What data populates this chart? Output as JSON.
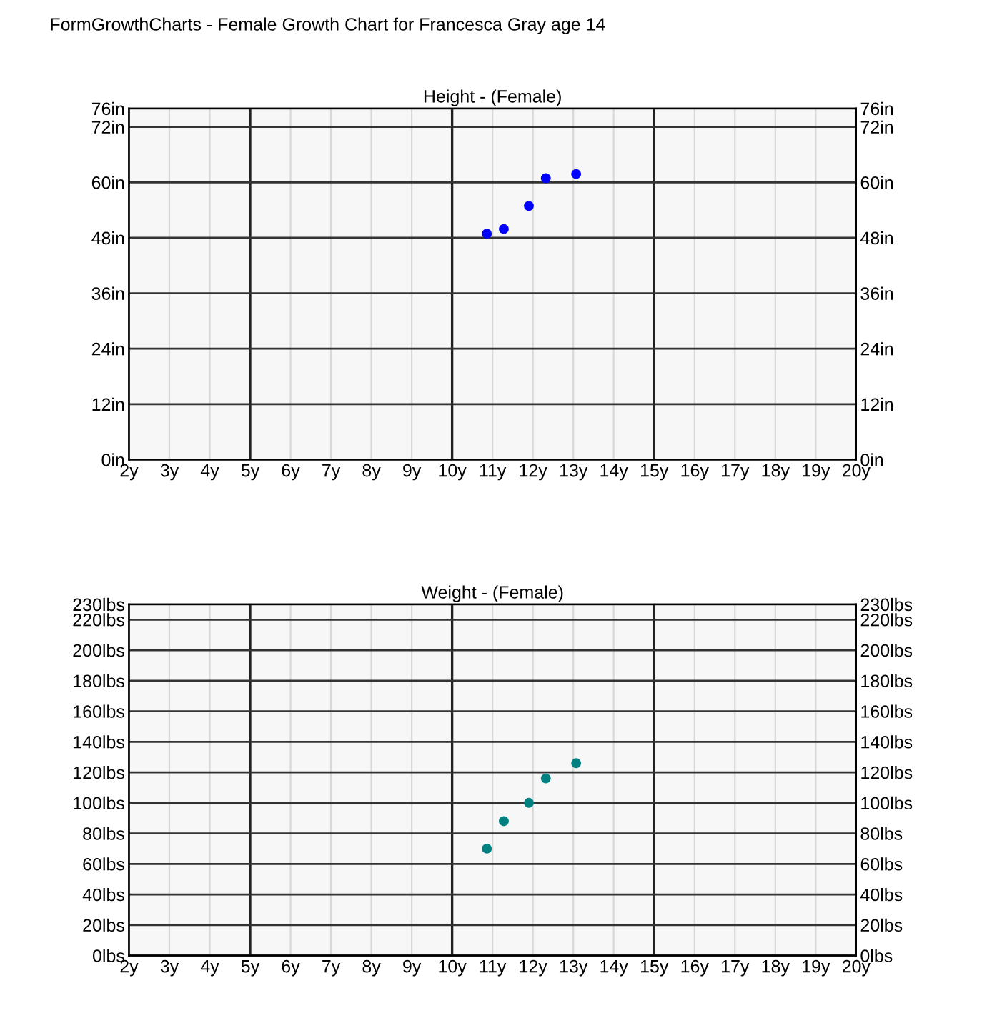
{
  "chart_data": [
    {
      "type": "scatter",
      "title": "Height - (Female)",
      "annotations": [
        "FormGrowthCharts - Female Growth Chart for Francesca Gray age 14"
      ],
      "x": [
        10.86,
        11.28,
        11.9,
        12.32,
        13.07
      ],
      "series": [
        {
          "color": "#0000ff",
          "values": [
            48.9,
            49.9,
            54.9,
            60.9,
            61.8
          ]
        }
      ],
      "xlim": [
        2,
        20
      ],
      "xticks": [
        {
          "value": 2,
          "label": "2y"
        },
        {
          "value": 3,
          "label": "3y"
        },
        {
          "value": 4,
          "label": "4y"
        },
        {
          "value": 5,
          "label": "5y"
        },
        {
          "value": 6,
          "label": "6y"
        },
        {
          "value": 7,
          "label": "7y"
        },
        {
          "value": 8,
          "label": "8y"
        },
        {
          "value": 9,
          "label": "9y"
        },
        {
          "value": 10,
          "label": "10y"
        },
        {
          "value": 11,
          "label": "11y"
        },
        {
          "value": 12,
          "label": "12y"
        },
        {
          "value": 13,
          "label": "13y"
        },
        {
          "value": 14,
          "label": "14y"
        },
        {
          "value": 15,
          "label": "15y"
        },
        {
          "value": 16,
          "label": "16y"
        },
        {
          "value": 17,
          "label": "17y"
        },
        {
          "value": 18,
          "label": "18y"
        },
        {
          "value": 19,
          "label": "19y"
        },
        {
          "value": 20,
          "label": "20y"
        }
      ],
      "ylim": [
        0,
        76
      ],
      "yticks": [
        {
          "value": 0,
          "label": "0in"
        },
        {
          "value": 12,
          "label": "12in"
        },
        {
          "value": 24,
          "label": "24in"
        },
        {
          "value": 36,
          "label": "36in"
        },
        {
          "value": 48,
          "label": "48in"
        },
        {
          "value": 60,
          "label": "60in"
        },
        {
          "value": 72,
          "label": "72in"
        },
        {
          "value": 76,
          "label": "76in"
        }
      ],
      "y2lim": [
        0,
        76
      ],
      "y2ticks": [
        {
          "value": 0,
          "label": "0in"
        },
        {
          "value": 12,
          "label": "12in"
        },
        {
          "value": 24,
          "label": "24in"
        },
        {
          "value": 36,
          "label": "36in"
        },
        {
          "value": 48,
          "label": "48in"
        },
        {
          "value": 60,
          "label": "60in"
        },
        {
          "value": 72,
          "label": "72in"
        },
        {
          "value": 76,
          "label": "76in"
        }
      ],
      "grid": true,
      "marker": "circle"
    },
    {
      "type": "scatter",
      "title": "Weight - (Female)",
      "x": [
        10.86,
        11.28,
        11.9,
        12.32,
        13.07
      ],
      "series": [
        {
          "color": "#008080",
          "values": [
            70,
            88,
            100,
            116,
            126
          ]
        }
      ],
      "xlim": [
        2,
        20
      ],
      "xticks": [
        {
          "value": 2,
          "label": "2y"
        },
        {
          "value": 3,
          "label": "3y"
        },
        {
          "value": 4,
          "label": "4y"
        },
        {
          "value": 5,
          "label": "5y"
        },
        {
          "value": 6,
          "label": "6y"
        },
        {
          "value": 7,
          "label": "7y"
        },
        {
          "value": 8,
          "label": "8y"
        },
        {
          "value": 9,
          "label": "9y"
        },
        {
          "value": 10,
          "label": "10y"
        },
        {
          "value": 11,
          "label": "11y"
        },
        {
          "value": 12,
          "label": "12y"
        },
        {
          "value": 13,
          "label": "13y"
        },
        {
          "value": 14,
          "label": "14y"
        },
        {
          "value": 15,
          "label": "15y"
        },
        {
          "value": 16,
          "label": "16y"
        },
        {
          "value": 17,
          "label": "17y"
        },
        {
          "value": 18,
          "label": "18y"
        },
        {
          "value": 19,
          "label": "19y"
        },
        {
          "value": 20,
          "label": "20y"
        }
      ],
      "ylim": [
        0,
        230
      ],
      "yticks": [
        {
          "value": 0,
          "label": "0lbs"
        },
        {
          "value": 20,
          "label": "20lbs"
        },
        {
          "value": 40,
          "label": "40lbs"
        },
        {
          "value": 60,
          "label": "60lbs"
        },
        {
          "value": 80,
          "label": "80lbs"
        },
        {
          "value": 100,
          "label": "100lbs"
        },
        {
          "value": 120,
          "label": "120lbs"
        },
        {
          "value": 140,
          "label": "140lbs"
        },
        {
          "value": 160,
          "label": "160lbs"
        },
        {
          "value": 180,
          "label": "180lbs"
        },
        {
          "value": 200,
          "label": "200lbs"
        },
        {
          "value": 220,
          "label": "220lbs"
        },
        {
          "value": 230,
          "label": "230lbs"
        }
      ],
      "y2lim": [
        0,
        230
      ],
      "y2ticks": [
        {
          "value": 0,
          "label": "0lbs"
        },
        {
          "value": 20,
          "label": "20lbs"
        },
        {
          "value": 40,
          "label": "40lbs"
        },
        {
          "value": 60,
          "label": "60lbs"
        },
        {
          "value": 80,
          "label": "80lbs"
        },
        {
          "value": 100,
          "label": "100lbs"
        },
        {
          "value": 120,
          "label": "120lbs"
        },
        {
          "value": 140,
          "label": "140lbs"
        },
        {
          "value": 160,
          "label": "160lbs"
        },
        {
          "value": 180,
          "label": "180lbs"
        },
        {
          "value": 200,
          "label": "200lbs"
        },
        {
          "value": 220,
          "label": "220lbs"
        },
        {
          "value": 230,
          "label": "230lbs"
        }
      ],
      "grid": true,
      "marker": "circle"
    }
  ]
}
